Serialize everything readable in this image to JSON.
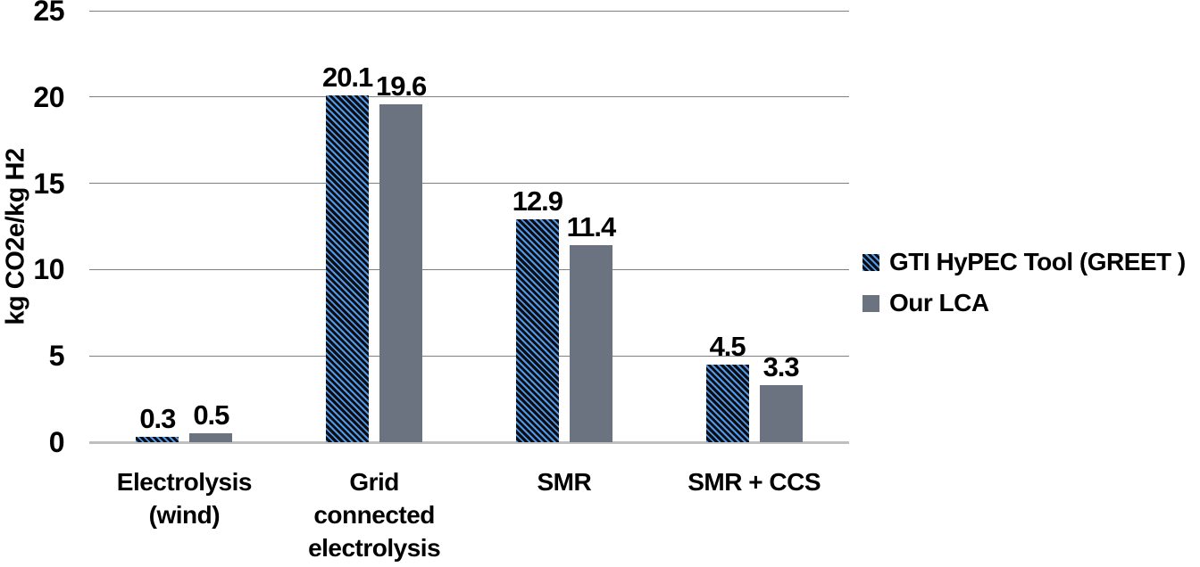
{
  "chart_data": {
    "type": "bar",
    "title": "",
    "xlabel": "",
    "ylabel": "kg CO2e/kg H2",
    "ylim": [
      0,
      25
    ],
    "yticks": [
      0,
      5,
      10,
      15,
      20,
      25
    ],
    "grid": true,
    "legend_position": "right",
    "categories": [
      "Electrolysis (wind)",
      "Grid connected electrolysis",
      "SMR",
      "SMR + CCS"
    ],
    "category_label_lines": [
      [
        "Electrolysis",
        "(wind)"
      ],
      [
        "Grid",
        "connected",
        "electrolysis"
      ],
      [
        "SMR"
      ],
      [
        "SMR + CCS"
      ]
    ],
    "series": [
      {
        "name": "GTI HyPEC Tool (GREET )",
        "style": "hatched",
        "values": [
          0.3,
          20.1,
          12.9,
          4.5
        ],
        "labels": [
          "0.3",
          "20.1",
          "12.9",
          "4.5"
        ]
      },
      {
        "name": "Our LCA",
        "style": "solid",
        "values": [
          0.5,
          19.6,
          11.4,
          3.3
        ],
        "labels": [
          "0.5",
          "19.6",
          "11.4",
          "3.3"
        ]
      }
    ]
  },
  "colors": {
    "hatch_stripe_blue": "#4e9ae8",
    "hatch_background": "#0b0b10",
    "solid_gray": "#6b7380",
    "gridline": "#7f7f7f",
    "axis_line": "#bfbfbf",
    "text": "#000000",
    "background": "#ffffff"
  }
}
